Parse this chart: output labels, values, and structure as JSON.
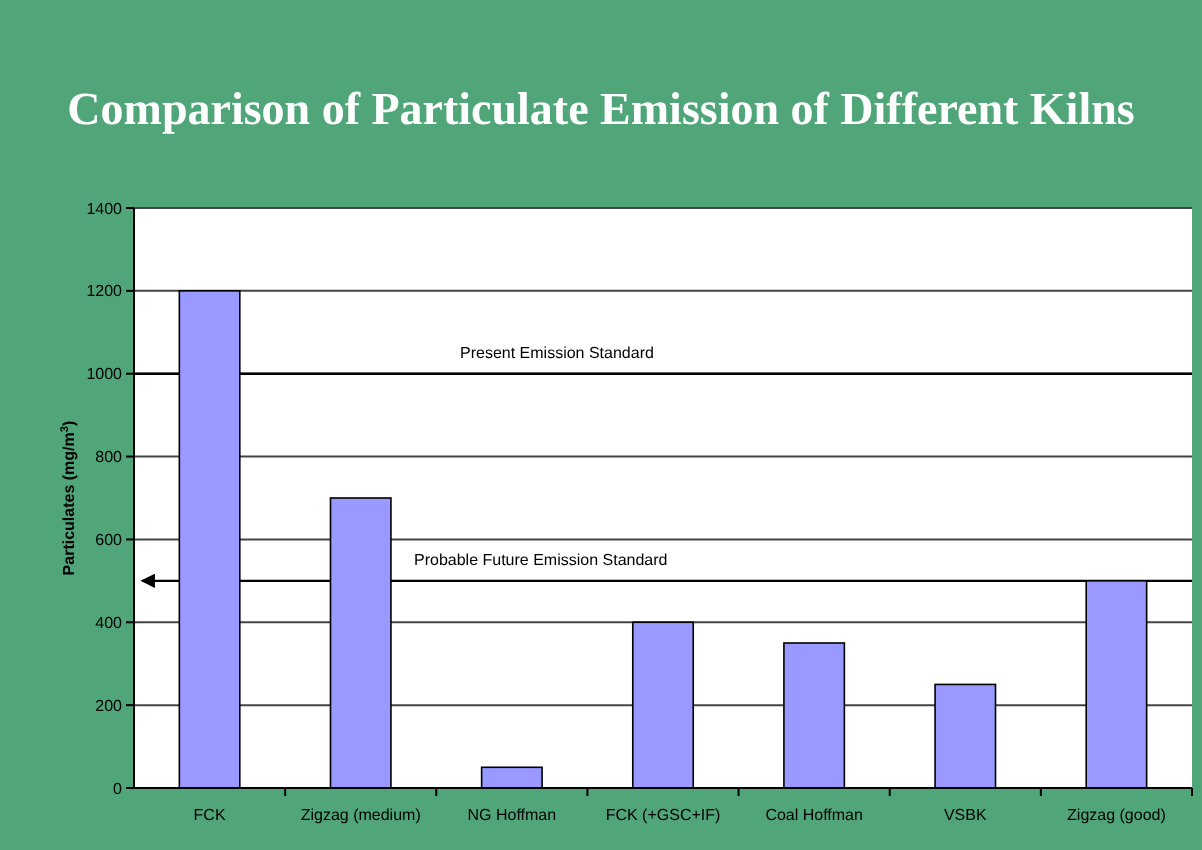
{
  "chart_data": {
    "type": "bar",
    "title": "Comparison of Particulate Emission of Different Kilns",
    "ylabel": "Particulates (mg/m$^{3}$)",
    "categories": [
      "FCK",
      "Zigzag (medium)",
      "NG Hoffman",
      "FCK (+GSC+IF)",
      "Coal Hoffman",
      "VSBK",
      "Zigzag (good)"
    ],
    "values": [
      1200,
      700,
      50,
      400,
      350,
      250,
      500
    ],
    "color": "#9999ff",
    "ylim": [
      0,
      1400
    ],
    "yticks": [
      0,
      200,
      400,
      600,
      800,
      1000,
      1200,
      1400
    ],
    "grid": "y",
    "ref_lines": [
      {
        "axis": "y",
        "value": 1000,
        "label": "Present Emission Standard",
        "color": "#000000",
        "line_style": "solid"
      },
      {
        "axis": "y",
        "value": 500,
        "label": "Probable Future Emission Standard",
        "color": "#000000",
        "line_style": "solid"
      }
    ]
  }
}
